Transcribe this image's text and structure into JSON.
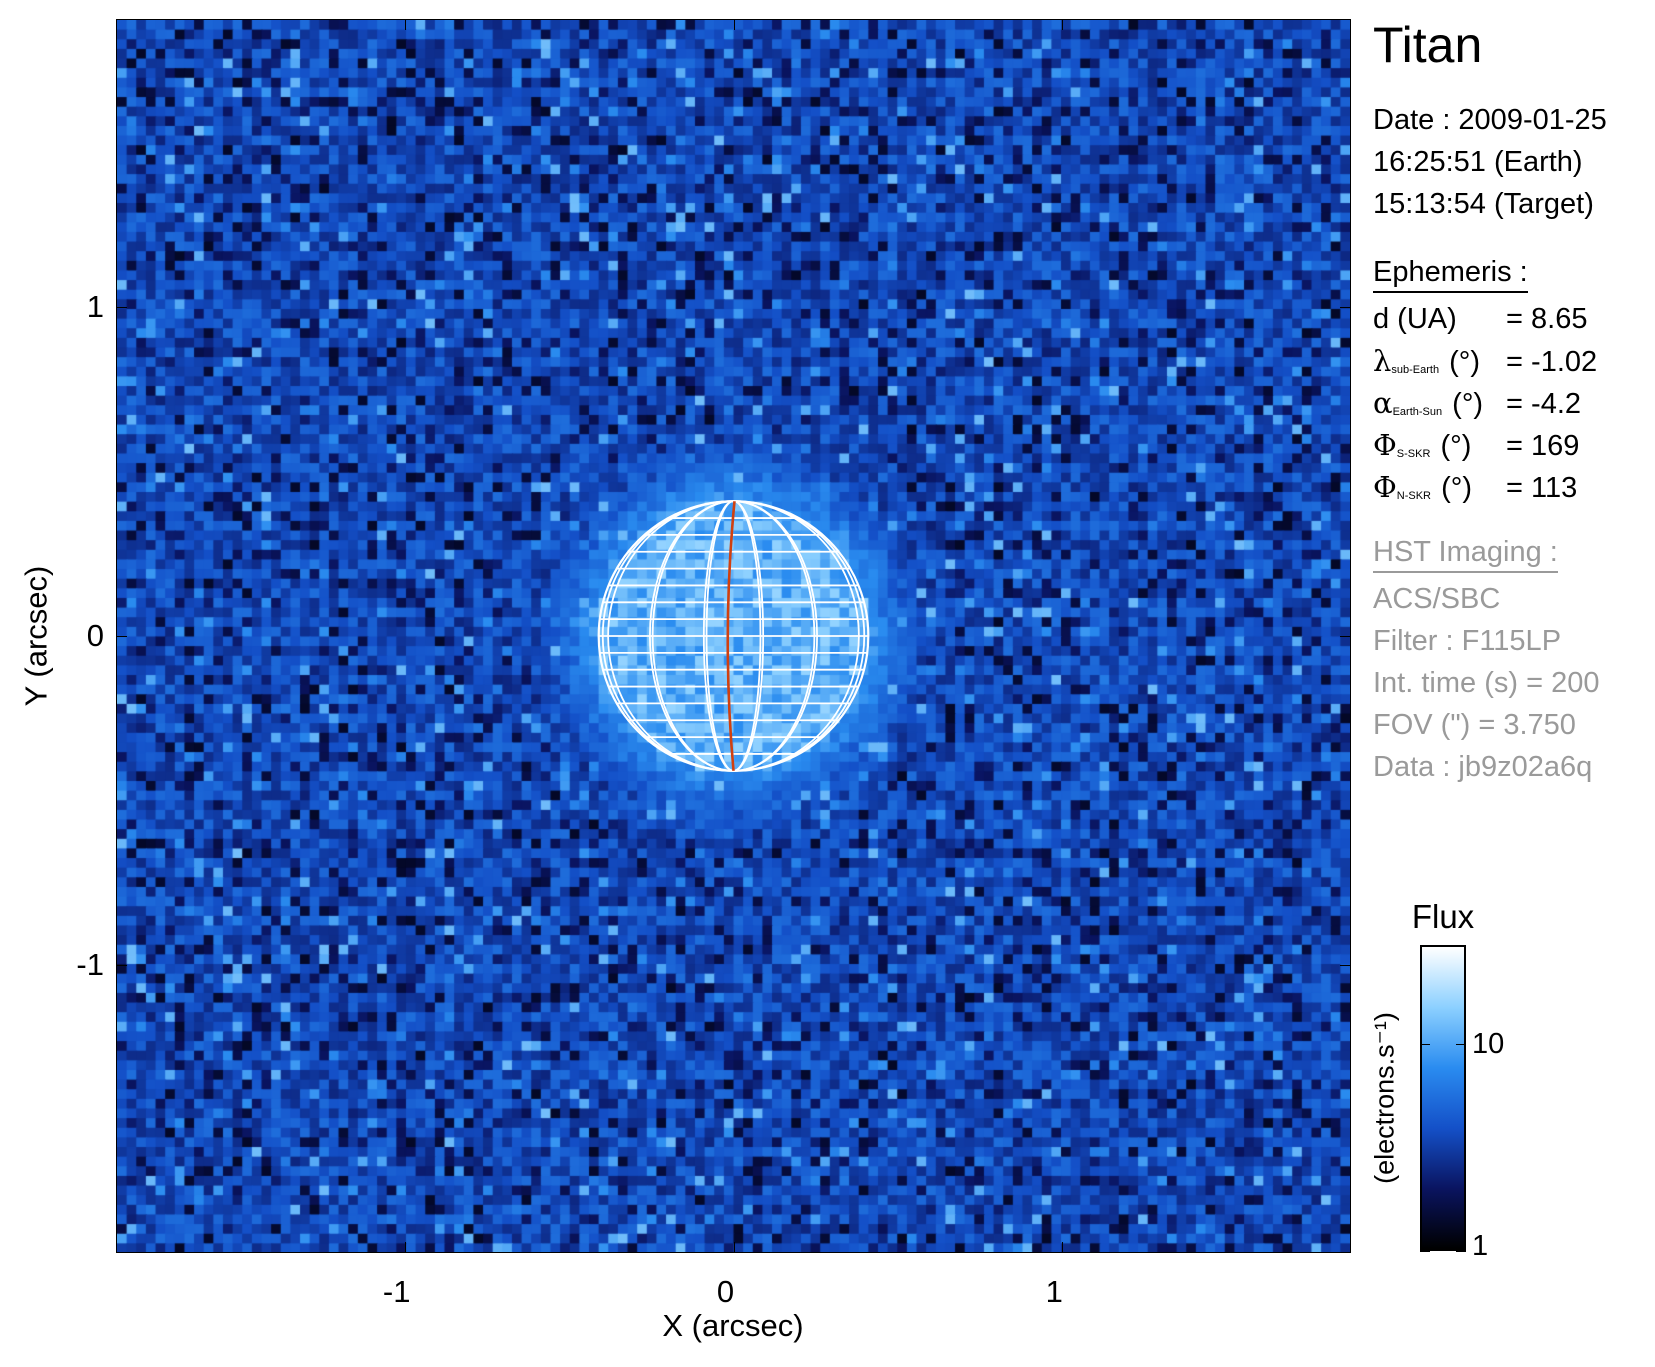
{
  "chart_data": {
    "type": "heatmap",
    "xlabel": "X (arcsec)",
    "ylabel": "Y (arcsec)",
    "xlim": [
      -1.875,
      1.875
    ],
    "ylim": [
      -1.875,
      1.875
    ],
    "xticks": [
      -1,
      0,
      1
    ],
    "yticks": [
      1,
      0,
      -1
    ],
    "planet": {
      "center": [
        0,
        0
      ],
      "radius_arcsec": 0.41,
      "central_meridian_color": "#d04010",
      "grid_color": "#ffffff"
    },
    "colorbar": {
      "title": "Flux",
      "label": "(electrons.s⁻¹)",
      "scale": "log",
      "range": [
        1,
        30
      ],
      "ticks": [
        1,
        10
      ],
      "tick_labels": [
        "1",
        "10"
      ],
      "colors": [
        "#000000",
        "#0a1460",
        "#1450c8",
        "#2a8cf0",
        "#8cd0ff",
        "#ffffff"
      ]
    }
  },
  "panel": {
    "object": "Titan",
    "date_line": "Date : 2009-01-25",
    "earth_time": "16:25:51 (Earth)",
    "target_time": "15:13:54 (Target)",
    "ephemeris_title": "Ephemeris :",
    "ephemeris": [
      {
        "sym": "",
        "sub": "",
        "label": "d (UA)",
        "unit": "",
        "value": "= 8.65"
      },
      {
        "sym": "λ",
        "sub": "sub-Earth",
        "label": "",
        "unit": " (°)",
        "value": "= -1.02"
      },
      {
        "sym": "α",
        "sub": "Earth-Sun",
        "label": "",
        "unit": " (°)",
        "value": "= -4.2"
      },
      {
        "sym": "Φ",
        "sub": "S-SKR",
        "label": "",
        "unit": " (°)",
        "value": "= 169"
      },
      {
        "sym": "Φ",
        "sub": "N-SKR",
        "label": "",
        "unit": " (°)",
        "value": "= 113"
      }
    ],
    "hst_title": "HST Imaging :",
    "hst": [
      "ACS/SBC",
      "Filter : F115LP",
      "Int. time (s) = 200",
      "FOV (\") = 3.750",
      "Data : jb9z02a6q"
    ]
  }
}
